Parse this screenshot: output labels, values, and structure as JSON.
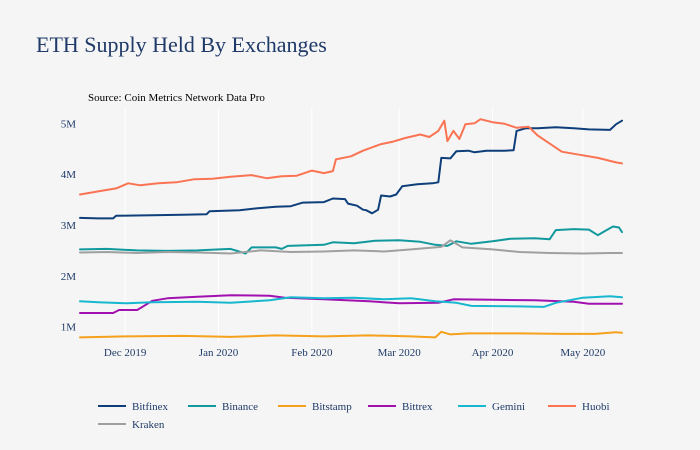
{
  "chart_data": {
    "type": "line",
    "title": "ETH Supply Held By Exchanges",
    "annotation": "Source: Coin Metrics Network Data Pro",
    "xlabel": "",
    "ylabel": "",
    "x_range": [
      "2019-11-16",
      "2020-05-14"
    ],
    "x_ticks": [
      {
        "date": "2019-12-01",
        "label": "Dec 2019"
      },
      {
        "date": "2020-01-01",
        "label": "Jan 2020"
      },
      {
        "date": "2020-02-01",
        "label": "Feb 2020"
      },
      {
        "date": "2020-03-01",
        "label": "Mar 2020"
      },
      {
        "date": "2020-04-01",
        "label": "Apr 2020"
      },
      {
        "date": "2020-05-01",
        "label": "May 2020"
      }
    ],
    "ylim": [
      700000,
      5300000
    ],
    "y_ticks": [
      {
        "value": 1000000,
        "label": "1M"
      },
      {
        "value": 2000000,
        "label": "2M"
      },
      {
        "value": 3000000,
        "label": "3M"
      },
      {
        "value": 4000000,
        "label": "4M"
      },
      {
        "value": 5000000,
        "label": "5M"
      }
    ],
    "grid": {
      "vertical": true,
      "horizontal": false
    },
    "legend_position": "bottom",
    "colors": {
      "background": "#f5f5f5",
      "title": "#1f3a68",
      "text": "#1f3a68",
      "grid": "#ffffff"
    },
    "series": [
      {
        "name": "Bitfinex",
        "color": "#0e3f7a",
        "points": [
          [
            "2019-11-16",
            3140000
          ],
          [
            "2019-11-22",
            3130000
          ],
          [
            "2019-11-27",
            3130000
          ],
          [
            "2019-11-28",
            3180000
          ],
          [
            "2019-12-10",
            3190000
          ],
          [
            "2019-12-20",
            3200000
          ],
          [
            "2019-12-28",
            3210000
          ],
          [
            "2019-12-29",
            3270000
          ],
          [
            "2020-01-08",
            3290000
          ],
          [
            "2020-01-14",
            3330000
          ],
          [
            "2020-01-20",
            3360000
          ],
          [
            "2020-01-25",
            3370000
          ],
          [
            "2020-01-29",
            3440000
          ],
          [
            "2020-02-05",
            3450000
          ],
          [
            "2020-02-08",
            3520000
          ],
          [
            "2020-02-12",
            3510000
          ],
          [
            "2020-02-13",
            3420000
          ],
          [
            "2020-02-16",
            3380000
          ],
          [
            "2020-02-18",
            3300000
          ],
          [
            "2020-02-19",
            3290000
          ],
          [
            "2020-02-21",
            3230000
          ],
          [
            "2020-02-23",
            3300000
          ],
          [
            "2020-02-24",
            3580000
          ],
          [
            "2020-02-27",
            3560000
          ],
          [
            "2020-02-29",
            3600000
          ],
          [
            "2020-03-02",
            3760000
          ],
          [
            "2020-03-07",
            3800000
          ],
          [
            "2020-03-12",
            3820000
          ],
          [
            "2020-03-14",
            3840000
          ],
          [
            "2020-03-15",
            4320000
          ],
          [
            "2020-03-18",
            4310000
          ],
          [
            "2020-03-20",
            4450000
          ],
          [
            "2020-03-24",
            4460000
          ],
          [
            "2020-03-26",
            4430000
          ],
          [
            "2020-03-30",
            4460000
          ],
          [
            "2020-04-05",
            4460000
          ],
          [
            "2020-04-08",
            4470000
          ],
          [
            "2020-04-09",
            4850000
          ],
          [
            "2020-04-12",
            4900000
          ],
          [
            "2020-04-16",
            4900000
          ],
          [
            "2020-04-22",
            4920000
          ],
          [
            "2020-04-28",
            4900000
          ],
          [
            "2020-05-03",
            4880000
          ],
          [
            "2020-05-10",
            4870000
          ],
          [
            "2020-05-12",
            4980000
          ],
          [
            "2020-05-14",
            5050000
          ]
        ]
      },
      {
        "name": "Binance",
        "color": "#11999e",
        "points": [
          [
            "2019-11-16",
            2520000
          ],
          [
            "2019-11-25",
            2530000
          ],
          [
            "2019-12-05",
            2500000
          ],
          [
            "2019-12-15",
            2490000
          ],
          [
            "2019-12-25",
            2500000
          ],
          [
            "2020-01-05",
            2530000
          ],
          [
            "2020-01-10",
            2440000
          ],
          [
            "2020-01-12",
            2560000
          ],
          [
            "2020-01-20",
            2560000
          ],
          [
            "2020-01-22",
            2530000
          ],
          [
            "2020-01-24",
            2590000
          ],
          [
            "2020-02-05",
            2610000
          ],
          [
            "2020-02-08",
            2660000
          ],
          [
            "2020-02-15",
            2640000
          ],
          [
            "2020-02-22",
            2690000
          ],
          [
            "2020-03-01",
            2700000
          ],
          [
            "2020-03-08",
            2670000
          ],
          [
            "2020-03-13",
            2610000
          ],
          [
            "2020-03-17",
            2590000
          ],
          [
            "2020-03-20",
            2680000
          ],
          [
            "2020-03-25",
            2630000
          ],
          [
            "2020-04-01",
            2680000
          ],
          [
            "2020-04-07",
            2730000
          ],
          [
            "2020-04-15",
            2740000
          ],
          [
            "2020-04-20",
            2720000
          ],
          [
            "2020-04-22",
            2900000
          ],
          [
            "2020-04-28",
            2920000
          ],
          [
            "2020-05-03",
            2910000
          ],
          [
            "2020-05-06",
            2800000
          ],
          [
            "2020-05-08",
            2870000
          ],
          [
            "2020-05-11",
            2970000
          ],
          [
            "2020-05-13",
            2950000
          ],
          [
            "2020-05-14",
            2860000
          ]
        ]
      },
      {
        "name": "Bitstamp",
        "color": "#f5a11c",
        "points": [
          [
            "2019-11-16",
            790000
          ],
          [
            "2019-12-01",
            810000
          ],
          [
            "2019-12-20",
            820000
          ],
          [
            "2020-01-05",
            800000
          ],
          [
            "2020-01-20",
            830000
          ],
          [
            "2020-02-05",
            810000
          ],
          [
            "2020-02-20",
            830000
          ],
          [
            "2020-03-05",
            810000
          ],
          [
            "2020-03-13",
            790000
          ],
          [
            "2020-03-15",
            900000
          ],
          [
            "2020-03-18",
            850000
          ],
          [
            "2020-03-24",
            870000
          ],
          [
            "2020-04-10",
            870000
          ],
          [
            "2020-04-25",
            860000
          ],
          [
            "2020-05-05",
            860000
          ],
          [
            "2020-05-12",
            890000
          ],
          [
            "2020-05-14",
            880000
          ]
        ]
      },
      {
        "name": "Bittrex",
        "color": "#a111b0",
        "points": [
          [
            "2019-11-16",
            1270000
          ],
          [
            "2019-11-27",
            1270000
          ],
          [
            "2019-11-29",
            1330000
          ],
          [
            "2019-12-05",
            1330000
          ],
          [
            "2019-12-10",
            1510000
          ],
          [
            "2019-12-15",
            1560000
          ],
          [
            "2019-12-25",
            1590000
          ],
          [
            "2020-01-05",
            1620000
          ],
          [
            "2020-01-18",
            1610000
          ],
          [
            "2020-01-23",
            1570000
          ],
          [
            "2020-02-05",
            1540000
          ],
          [
            "2020-02-20",
            1500000
          ],
          [
            "2020-03-01",
            1460000
          ],
          [
            "2020-03-14",
            1470000
          ],
          [
            "2020-03-19",
            1540000
          ],
          [
            "2020-04-01",
            1530000
          ],
          [
            "2020-04-15",
            1520000
          ],
          [
            "2020-04-28",
            1490000
          ],
          [
            "2020-05-03",
            1450000
          ],
          [
            "2020-05-14",
            1450000
          ]
        ]
      },
      {
        "name": "Gemini",
        "color": "#17b8cf",
        "points": [
          [
            "2019-11-16",
            1500000
          ],
          [
            "2019-11-22",
            1480000
          ],
          [
            "2019-12-01",
            1460000
          ],
          [
            "2019-12-10",
            1480000
          ],
          [
            "2019-12-25",
            1490000
          ],
          [
            "2020-01-05",
            1470000
          ],
          [
            "2020-01-18",
            1520000
          ],
          [
            "2020-01-25",
            1580000
          ],
          [
            "2020-02-05",
            1560000
          ],
          [
            "2020-02-15",
            1570000
          ],
          [
            "2020-02-25",
            1540000
          ],
          [
            "2020-03-05",
            1560000
          ],
          [
            "2020-03-13",
            1500000
          ],
          [
            "2020-03-20",
            1470000
          ],
          [
            "2020-03-25",
            1410000
          ],
          [
            "2020-04-10",
            1400000
          ],
          [
            "2020-04-18",
            1390000
          ],
          [
            "2020-04-22",
            1470000
          ],
          [
            "2020-05-01",
            1570000
          ],
          [
            "2020-05-10",
            1600000
          ],
          [
            "2020-05-14",
            1580000
          ]
        ]
      },
      {
        "name": "Huobi",
        "color": "#fa7453",
        "points": [
          [
            "2019-11-16",
            3600000
          ],
          [
            "2019-11-22",
            3660000
          ],
          [
            "2019-11-28",
            3720000
          ],
          [
            "2019-12-02",
            3820000
          ],
          [
            "2019-12-06",
            3780000
          ],
          [
            "2019-12-12",
            3820000
          ],
          [
            "2019-12-18",
            3840000
          ],
          [
            "2019-12-24",
            3900000
          ],
          [
            "2019-12-30",
            3910000
          ],
          [
            "2020-01-05",
            3950000
          ],
          [
            "2020-01-12",
            3980000
          ],
          [
            "2020-01-17",
            3920000
          ],
          [
            "2020-01-22",
            3960000
          ],
          [
            "2020-01-27",
            3970000
          ],
          [
            "2020-02-01",
            4070000
          ],
          [
            "2020-02-05",
            4020000
          ],
          [
            "2020-02-08",
            4060000
          ],
          [
            "2020-02-09",
            4290000
          ],
          [
            "2020-02-14",
            4350000
          ],
          [
            "2020-02-18",
            4460000
          ],
          [
            "2020-02-24",
            4590000
          ],
          [
            "2020-02-28",
            4640000
          ],
          [
            "2020-03-03",
            4710000
          ],
          [
            "2020-03-08",
            4780000
          ],
          [
            "2020-03-11",
            4730000
          ],
          [
            "2020-03-14",
            4850000
          ],
          [
            "2020-03-16",
            5050000
          ],
          [
            "2020-03-17",
            4650000
          ],
          [
            "2020-03-19",
            4850000
          ],
          [
            "2020-03-21",
            4690000
          ],
          [
            "2020-03-23",
            4980000
          ],
          [
            "2020-03-26",
            5000000
          ],
          [
            "2020-03-28",
            5080000
          ],
          [
            "2020-04-01",
            5020000
          ],
          [
            "2020-04-05",
            4990000
          ],
          [
            "2020-04-09",
            4910000
          ],
          [
            "2020-04-13",
            4930000
          ],
          [
            "2020-04-16",
            4760000
          ],
          [
            "2020-04-20",
            4600000
          ],
          [
            "2020-04-24",
            4440000
          ],
          [
            "2020-04-30",
            4380000
          ],
          [
            "2020-05-06",
            4320000
          ],
          [
            "2020-05-12",
            4230000
          ],
          [
            "2020-05-14",
            4210000
          ]
        ]
      },
      {
        "name": "Kraken",
        "color": "#a0a0a0",
        "points": [
          [
            "2019-11-16",
            2460000
          ],
          [
            "2019-11-25",
            2470000
          ],
          [
            "2019-12-05",
            2450000
          ],
          [
            "2019-12-15",
            2470000
          ],
          [
            "2019-12-25",
            2460000
          ],
          [
            "2020-01-05",
            2440000
          ],
          [
            "2020-01-15",
            2500000
          ],
          [
            "2020-01-25",
            2470000
          ],
          [
            "2020-02-05",
            2480000
          ],
          [
            "2020-02-15",
            2500000
          ],
          [
            "2020-02-25",
            2480000
          ],
          [
            "2020-03-05",
            2520000
          ],
          [
            "2020-03-15",
            2570000
          ],
          [
            "2020-03-18",
            2700000
          ],
          [
            "2020-03-22",
            2560000
          ],
          [
            "2020-04-01",
            2520000
          ],
          [
            "2020-04-10",
            2470000
          ],
          [
            "2020-04-20",
            2450000
          ],
          [
            "2020-05-01",
            2440000
          ],
          [
            "2020-05-10",
            2450000
          ],
          [
            "2020-05-14",
            2450000
          ]
        ]
      }
    ]
  }
}
